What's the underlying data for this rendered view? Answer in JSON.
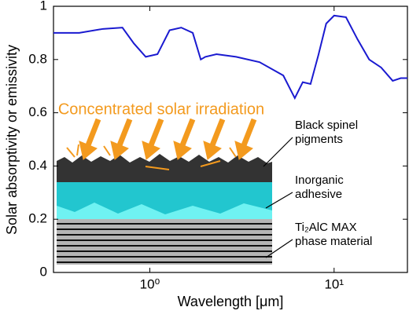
{
  "chart_data": {
    "type": "line",
    "x_label": "Wavelength [μm]",
    "y_label": "Solar absorptivity or emissivity",
    "x": [
      0.3,
      0.414,
      0.556,
      0.71,
      0.82,
      0.95,
      1.1,
      1.28,
      1.48,
      1.71,
      1.89,
      2.0,
      2.3,
      2.94,
      3.94,
      5.3,
      6.12,
      6.76,
      7.45,
      8.22,
      9.06,
      10.0,
      11.6,
      13.4,
      15.5,
      18.0,
      20.8,
      23.0,
      25.0
    ],
    "series": [
      {
        "color": "#1a1ad0",
        "values": [
          0.9,
          0.9,
          0.915,
          0.92,
          0.86,
          0.81,
          0.82,
          0.91,
          0.92,
          0.9,
          0.8,
          0.81,
          0.82,
          0.81,
          0.79,
          0.74,
          0.655,
          0.715,
          0.708,
          0.817,
          0.935,
          0.965,
          0.959,
          0.876,
          0.8,
          0.77,
          0.72,
          0.73,
          0.73
        ]
      }
    ],
    "xscale": "log",
    "xlim": [
      0.3,
      25
    ],
    "xticks": [
      {
        "value": 1,
        "label": "10⁰"
      },
      {
        "value": 10,
        "label": "10¹"
      }
    ],
    "ylim": [
      0,
      1
    ],
    "yticks": [
      0,
      0.2,
      0.4,
      0.6,
      0.8,
      1
    ],
    "annotations": [
      {
        "lines": [
          "Concentrated solar irradiation"
        ],
        "color": "#f39a1e"
      },
      {
        "lines": [
          "Black spinel",
          "pigments"
        ],
        "color": "#000000"
      },
      {
        "lines": [
          "Inorganic",
          "adhesive"
        ],
        "color": "#000000"
      },
      {
        "lines": [
          "Ti₂AlC MAX",
          "phase material"
        ],
        "color": "#000000"
      }
    ]
  }
}
